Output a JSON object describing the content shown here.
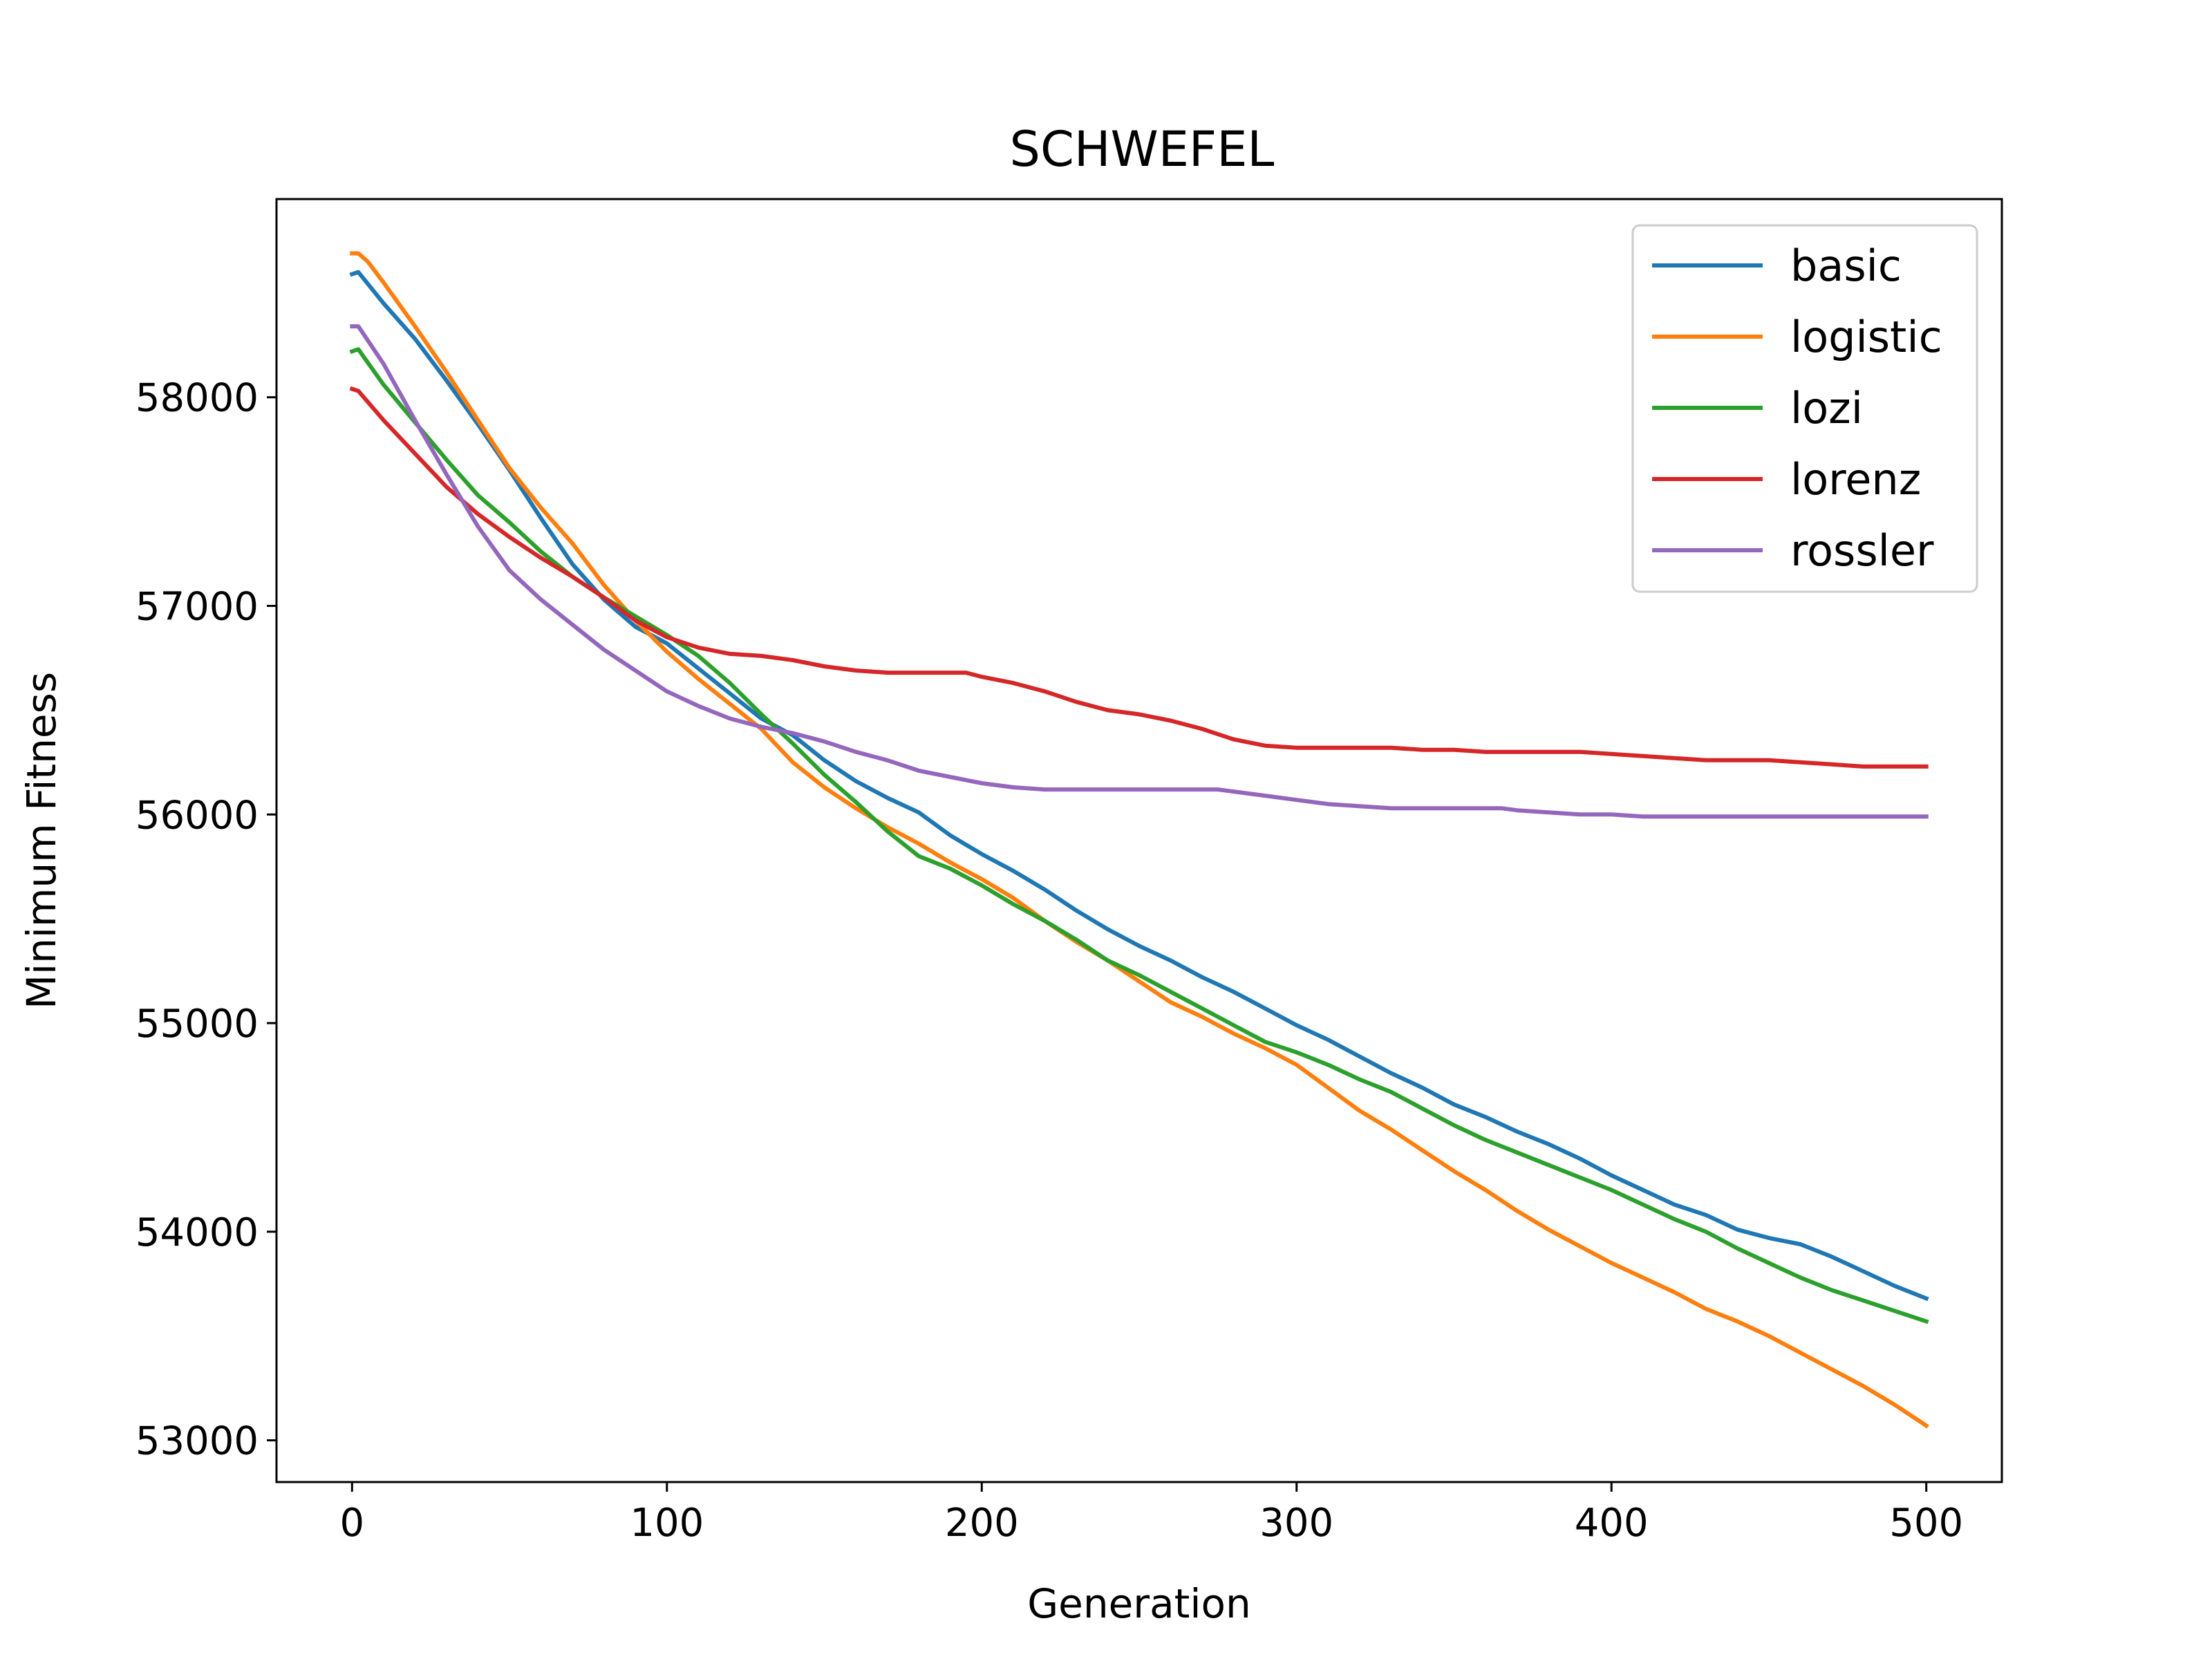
{
  "chart_data": {
    "type": "line",
    "title": "SCHWEFEL",
    "xlabel": "Generation",
    "ylabel": "Minimum Fitness",
    "xlim": [
      -24,
      524
    ],
    "ylim": [
      52800,
      58950
    ],
    "xticks": [
      0,
      100,
      200,
      300,
      400,
      500
    ],
    "xtick_labels": [
      "0",
      "100",
      "200",
      "300",
      "400",
      "500"
    ],
    "yticks": [
      53000,
      54000,
      55000,
      56000,
      57000,
      58000
    ],
    "ytick_labels": [
      "53000",
      "54000",
      "55000",
      "56000",
      "57000",
      "58000"
    ],
    "grid": false,
    "legend_position": "top-right",
    "series": [
      {
        "name": "basic",
        "color": "#1f77b4",
        "x": [
          0,
          2,
          10,
          20,
          30,
          40,
          50,
          60,
          70,
          80,
          90,
          100,
          110,
          120,
          130,
          140,
          150,
          160,
          170,
          180,
          190,
          200,
          210,
          220,
          230,
          240,
          250,
          260,
          270,
          280,
          290,
          300,
          310,
          320,
          330,
          340,
          350,
          360,
          370,
          380,
          390,
          400,
          410,
          420,
          430,
          440,
          450,
          460,
          470,
          480,
          490,
          500
        ],
        "y": [
          58590,
          58600,
          58450,
          58280,
          58080,
          57870,
          57650,
          57420,
          57200,
          57030,
          56900,
          56820,
          56700,
          56580,
          56460,
          56380,
          56260,
          56160,
          56080,
          56010,
          55900,
          55810,
          55730,
          55640,
          55540,
          55450,
          55370,
          55300,
          55220,
          55150,
          55070,
          54990,
          54920,
          54840,
          54760,
          54690,
          54610,
          54550,
          54480,
          54420,
          54350,
          54270,
          54200,
          54130,
          54080,
          54010,
          53970,
          53940,
          53880,
          53810,
          53740,
          53680
        ]
      },
      {
        "name": "logistic",
        "color": "#ff7f0e",
        "x": [
          0,
          2,
          5,
          10,
          20,
          30,
          40,
          50,
          60,
          70,
          80,
          90,
          100,
          110,
          120,
          130,
          140,
          150,
          160,
          170,
          180,
          190,
          200,
          210,
          220,
          230,
          240,
          250,
          260,
          270,
          280,
          290,
          300,
          310,
          320,
          330,
          340,
          350,
          360,
          370,
          380,
          390,
          400,
          410,
          420,
          430,
          440,
          450,
          460,
          470,
          480,
          490,
          500
        ],
        "y": [
          58690,
          58690,
          58650,
          58550,
          58340,
          58120,
          57890,
          57660,
          57470,
          57300,
          57100,
          56930,
          56780,
          56650,
          56530,
          56410,
          56250,
          56130,
          56030,
          55940,
          55860,
          55770,
          55690,
          55600,
          55490,
          55390,
          55300,
          55200,
          55100,
          55030,
          54950,
          54880,
          54800,
          54690,
          54580,
          54490,
          54390,
          54290,
          54200,
          54100,
          54010,
          53930,
          53850,
          53780,
          53710,
          53630,
          53570,
          53500,
          53420,
          53340,
          53260,
          53170,
          53070
        ]
      },
      {
        "name": "lozi",
        "color": "#2ca02c",
        "x": [
          0,
          2,
          10,
          20,
          30,
          40,
          50,
          60,
          70,
          80,
          90,
          100,
          110,
          120,
          130,
          140,
          150,
          160,
          170,
          180,
          190,
          200,
          210,
          220,
          230,
          240,
          250,
          260,
          270,
          280,
          290,
          300,
          310,
          320,
          330,
          340,
          350,
          360,
          370,
          380,
          390,
          400,
          410,
          420,
          430,
          440,
          450,
          460,
          470,
          480,
          490,
          500
        ],
        "y": [
          58220,
          58230,
          58060,
          57880,
          57700,
          57530,
          57400,
          57260,
          57140,
          57040,
          56950,
          56860,
          56760,
          56630,
          56480,
          56340,
          56190,
          56060,
          55920,
          55800,
          55740,
          55660,
          55570,
          55490,
          55400,
          55300,
          55230,
          55150,
          55070,
          54990,
          54910,
          54860,
          54800,
          54730,
          54670,
          54590,
          54510,
          54440,
          54380,
          54320,
          54260,
          54200,
          54130,
          54060,
          54000,
          53920,
          53850,
          53780,
          53720,
          53670,
          53620,
          53570
        ]
      },
      {
        "name": "lorenz",
        "color": "#d62728",
        "x": [
          0,
          2,
          10,
          20,
          30,
          40,
          50,
          60,
          70,
          80,
          90,
          100,
          110,
          120,
          130,
          140,
          150,
          160,
          170,
          180,
          190,
          195,
          200,
          210,
          220,
          230,
          240,
          250,
          260,
          270,
          280,
          290,
          300,
          310,
          320,
          330,
          340,
          350,
          360,
          370,
          380,
          390,
          400,
          410,
          420,
          430,
          440,
          450,
          460,
          470,
          480,
          490,
          500
        ],
        "y": [
          58040,
          58030,
          57890,
          57730,
          57570,
          57440,
          57330,
          57230,
          57140,
          57040,
          56930,
          56850,
          56800,
          56770,
          56760,
          56740,
          56710,
          56690,
          56680,
          56680,
          56680,
          56680,
          56660,
          56630,
          56590,
          56540,
          56500,
          56480,
          56450,
          56410,
          56360,
          56330,
          56320,
          56320,
          56320,
          56320,
          56310,
          56310,
          56300,
          56300,
          56300,
          56300,
          56290,
          56280,
          56270,
          56260,
          56260,
          56260,
          56250,
          56240,
          56230,
          56230,
          56230
        ]
      },
      {
        "name": "rossler",
        "color": "#9467bd",
        "x": [
          0,
          2,
          10,
          20,
          30,
          40,
          50,
          60,
          70,
          80,
          90,
          100,
          110,
          120,
          130,
          140,
          150,
          160,
          170,
          180,
          190,
          200,
          210,
          220,
          230,
          240,
          250,
          260,
          270,
          275,
          280,
          290,
          300,
          310,
          320,
          330,
          340,
          350,
          360,
          365,
          370,
          380,
          390,
          400,
          410,
          420,
          430,
          440,
          450,
          460,
          470,
          480,
          490,
          500
        ],
        "y": [
          58340,
          58340,
          58160,
          57890,
          57630,
          57380,
          57170,
          57030,
          56910,
          56790,
          56690,
          56590,
          56520,
          56460,
          56420,
          56390,
          56350,
          56300,
          56260,
          56210,
          56180,
          56150,
          56130,
          56120,
          56120,
          56120,
          56120,
          56120,
          56120,
          56120,
          56110,
          56090,
          56070,
          56050,
          56040,
          56030,
          56030,
          56030,
          56030,
          56030,
          56020,
          56010,
          56000,
          56000,
          55990,
          55990,
          55990,
          55990,
          55990,
          55990,
          55990,
          55990,
          55990,
          55990
        ]
      }
    ]
  }
}
